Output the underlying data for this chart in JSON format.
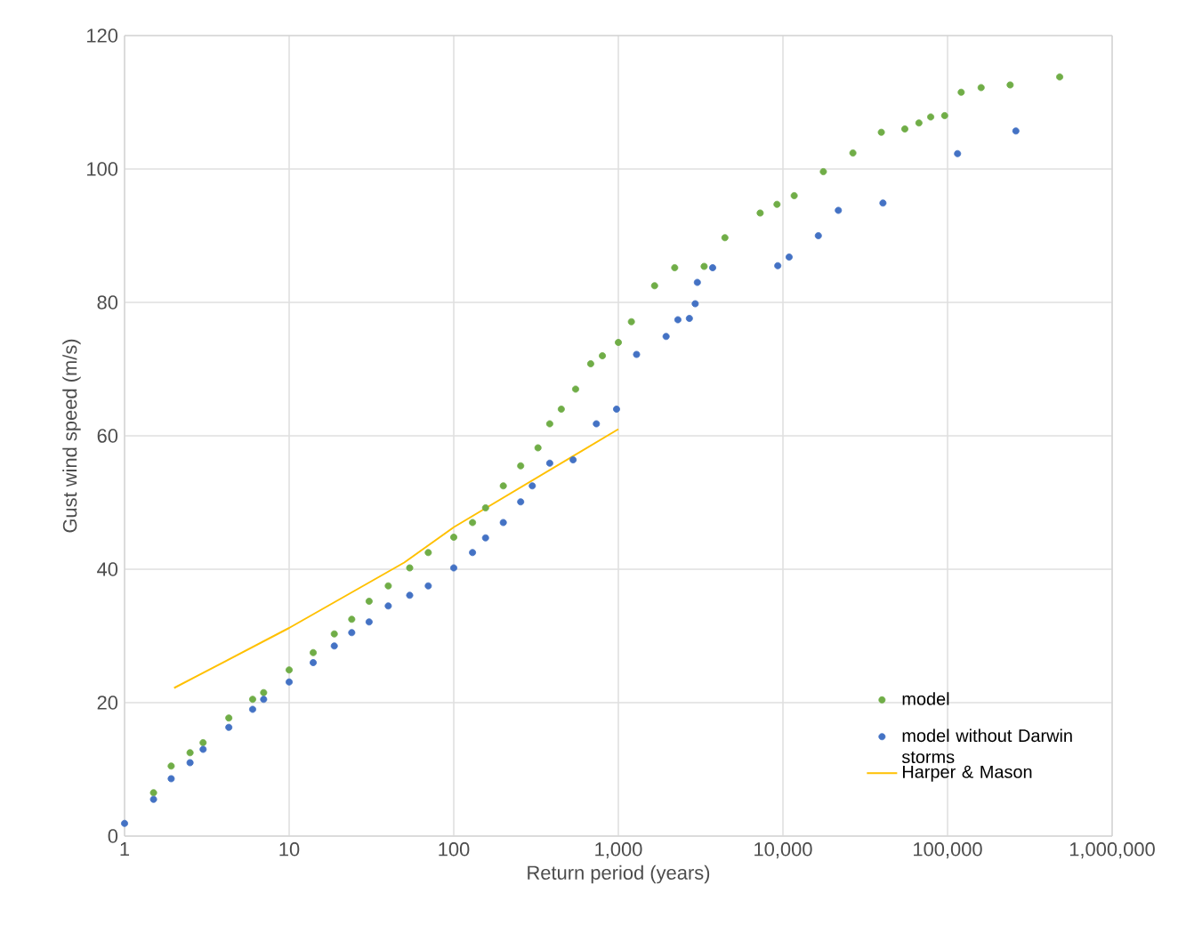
{
  "chart_data": {
    "type": "scatter",
    "xlabel": "Return period (years)",
    "ylabel": "Gust wind speed (m/s)",
    "log": "x",
    "xlim": [
      1,
      1000000
    ],
    "ylim": [
      0,
      120
    ],
    "xticks": [
      1,
      10,
      100,
      {
        "value": 1000,
        "label": "1,000"
      },
      {
        "value": 10000,
        "label": "10,000"
      },
      {
        "value": 100000,
        "label": "100,000"
      },
      {
        "value": 1000000,
        "label": "1,000,000"
      }
    ],
    "yticks": [
      0,
      20,
      40,
      60,
      80,
      100,
      120
    ],
    "grid": true,
    "legend": "bottom right",
    "marker": "circle",
    "series": [
      {
        "name": "model",
        "color": "#70ad47",
        "x": [
          1.5,
          1.92,
          2.5,
          3,
          4.3,
          6,
          7,
          10,
          14,
          18.8,
          24,
          30.6,
          40,
          54,
          70,
          100,
          130,
          156,
          200,
          255,
          325,
          383,
          450,
          550,
          679,
          800,
          1000,
          1200,
          1660,
          2200,
          3320,
          4440,
          7270,
          9200,
          11700,
          17600,
          26600,
          39600,
          55000,
          67000,
          79000,
          96000,
          121000,
          160000,
          240000,
          480000
        ],
        "values": [
          6.5,
          10.5,
          12.5,
          14,
          17.7,
          20.5,
          21.5,
          24.9,
          27.5,
          30.3,
          32.5,
          35.2,
          37.5,
          40.2,
          42.5,
          44.8,
          47,
          49.2,
          52.5,
          55.5,
          58.2,
          61.8,
          64,
          67,
          70.8,
          72,
          74,
          77.1,
          82.5,
          85.2,
          85.4,
          89.7,
          93.4,
          94.7,
          96,
          99.6,
          102.4,
          105.5,
          106,
          106.9,
          107.8,
          108,
          111.5,
          112.2,
          112.6,
          113.8
        ]
      },
      {
        "name": "model without Darwin storms",
        "color": "#4472c4",
        "x": [
          1,
          1.5,
          1.92,
          2.5,
          3,
          4.3,
          6,
          7,
          10,
          14,
          18.8,
          24,
          30.6,
          40,
          54,
          70,
          100,
          130,
          156,
          200,
          255,
          300,
          383,
          531,
          735,
          975,
          1290,
          1950,
          2300,
          2700,
          2930,
          3020,
          3740,
          9300,
          10900,
          16400,
          21700,
          40500,
          115000,
          260000
        ],
        "values": [
          1.9,
          5.5,
          8.6,
          11,
          13,
          16.3,
          19,
          20.5,
          23.1,
          26,
          28.5,
          30.5,
          32.1,
          34.5,
          36.1,
          37.5,
          40.2,
          42.5,
          44.7,
          47,
          50.1,
          52.5,
          55.9,
          56.4,
          61.8,
          64,
          72.2,
          74.9,
          77.4,
          77.6,
          79.8,
          83,
          85.2,
          85.5,
          86.8,
          90,
          93.8,
          94.9,
          102.3,
          105.7
        ]
      },
      {
        "name": "Harper & Mason",
        "type": "line",
        "marker": "none",
        "color": "#ffc000",
        "x": [
          2,
          10,
          50,
          100,
          1000
        ],
        "values": [
          22.2,
          31.2,
          41,
          46.3,
          61
        ]
      }
    ]
  }
}
